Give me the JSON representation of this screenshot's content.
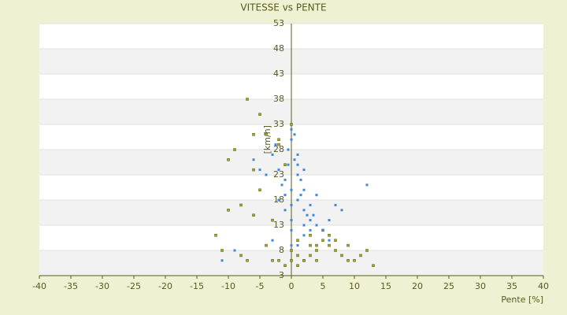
{
  "chart_data": {
    "type": "scatter",
    "title": "VITESSE vs PENTE",
    "x_label": "Pente [%]",
    "y_label": "[km/h]",
    "xlim": [
      -40,
      40
    ],
    "xticks": [
      -40,
      -35,
      -30,
      -25,
      -20,
      -15,
      -10,
      -5,
      0,
      5,
      10,
      15,
      20,
      25,
      30,
      35,
      40
    ],
    "ylim": [
      3,
      53
    ],
    "yticks": [
      3,
      8,
      13,
      18,
      23,
      28,
      33,
      38,
      43,
      48,
      53
    ],
    "grid": true,
    "series": [
      {
        "color": "#3a8ad6",
        "x": [
          0,
          -1,
          1,
          2,
          -2,
          0.5,
          -0.5,
          3,
          4,
          1.5,
          -1.5,
          2.5,
          0,
          1,
          -3,
          5,
          6,
          -4,
          0,
          2,
          3,
          -1,
          1,
          0,
          -2,
          4,
          7,
          -5,
          0.5,
          1.5,
          -0.5,
          2,
          3.5,
          -2.5,
          0,
          1,
          8,
          -6,
          12,
          -11,
          -9,
          6,
          -3,
          2,
          0,
          1,
          -1,
          3,
          0,
          2
        ],
        "values": [
          20,
          22,
          18,
          16,
          24,
          26,
          28,
          14,
          13,
          19,
          21,
          15,
          30,
          25,
          27,
          12,
          10,
          23,
          17,
          11,
          17,
          19,
          23,
          14,
          18,
          19,
          17,
          24,
          31,
          22,
          25,
          20,
          15,
          29,
          12,
          9,
          16,
          26,
          21,
          6,
          8,
          14,
          10,
          13,
          9,
          27,
          16,
          12,
          32,
          24
        ]
      },
      {
        "color": "#a8a820",
        "x": [
          -7,
          -5,
          -6,
          -9,
          -10,
          -12,
          -11,
          -8,
          -4,
          -3,
          -2,
          -1,
          0,
          1,
          2,
          3,
          4,
          5,
          6,
          7,
          8,
          9,
          10,
          11,
          12,
          13,
          -2,
          0,
          1,
          3,
          5,
          -5,
          -6,
          -3,
          -8,
          2,
          4,
          6,
          -1,
          0,
          -4,
          9,
          -10,
          3,
          7,
          -7,
          -6,
          1,
          -2,
          4
        ],
        "values": [
          38,
          35,
          31,
          28,
          26,
          11,
          8,
          7,
          9,
          6,
          6,
          5,
          6,
          5,
          6,
          7,
          8,
          10,
          9,
          8,
          7,
          9,
          6,
          7,
          8,
          5,
          29,
          8,
          10,
          9,
          12,
          20,
          15,
          14,
          17,
          6,
          9,
          11,
          25,
          33,
          31,
          6,
          16,
          11,
          10,
          6,
          24,
          7,
          30,
          6
        ]
      }
    ]
  }
}
